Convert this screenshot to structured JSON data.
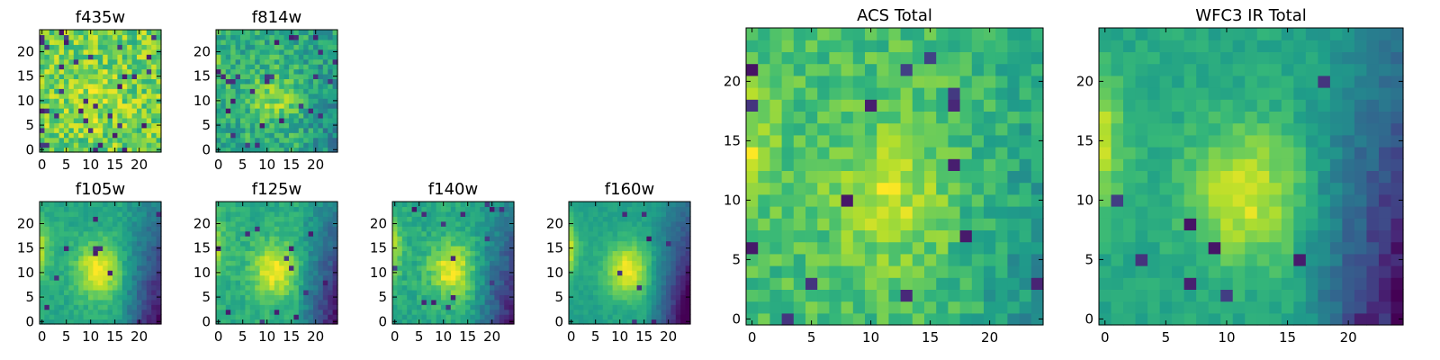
{
  "chart_data": [
    {
      "type": "heatmap",
      "title": "f435w",
      "xticks": [
        "0",
        "5",
        "10",
        "15",
        "20"
      ],
      "yticks": [
        "0",
        "5",
        "10",
        "15",
        "20"
      ],
      "xlim": [
        -0.5,
        24.5
      ],
      "ylim": [
        -0.5,
        24.5
      ],
      "grid": false,
      "colormap": "viridis"
    },
    {
      "type": "heatmap",
      "title": "f814w",
      "xticks": [
        "0",
        "5",
        "10",
        "15",
        "20"
      ],
      "yticks": [
        "0",
        "5",
        "10",
        "15",
        "20"
      ],
      "xlim": [
        -0.5,
        24.5
      ],
      "ylim": [
        -0.5,
        24.5
      ],
      "grid": false,
      "colormap": "viridis"
    },
    {
      "type": "heatmap",
      "title": "f105w",
      "xticks": [
        "0",
        "5",
        "10",
        "15",
        "20"
      ],
      "yticks": [
        "0",
        "5",
        "10",
        "15",
        "20"
      ],
      "xlim": [
        -0.5,
        24.5
      ],
      "ylim": [
        -0.5,
        24.5
      ],
      "grid": false,
      "colormap": "viridis"
    },
    {
      "type": "heatmap",
      "title": "f125w",
      "xticks": [
        "0",
        "5",
        "10",
        "15",
        "20"
      ],
      "yticks": [
        "0",
        "5",
        "10",
        "15",
        "20"
      ],
      "xlim": [
        -0.5,
        24.5
      ],
      "ylim": [
        -0.5,
        24.5
      ],
      "grid": false,
      "colormap": "viridis"
    },
    {
      "type": "heatmap",
      "title": "f140w",
      "xticks": [
        "0",
        "5",
        "10",
        "15",
        "20"
      ],
      "yticks": [
        "0",
        "5",
        "10",
        "15",
        "20"
      ],
      "xlim": [
        -0.5,
        24.5
      ],
      "ylim": [
        -0.5,
        24.5
      ],
      "grid": false,
      "colormap": "viridis"
    },
    {
      "type": "heatmap",
      "title": "f160w",
      "xticks": [
        "0",
        "5",
        "10",
        "15",
        "20"
      ],
      "yticks": [
        "0",
        "5",
        "10",
        "15",
        "20"
      ],
      "xlim": [
        -0.5,
        24.5
      ],
      "ylim": [
        -0.5,
        24.5
      ],
      "grid": false,
      "colormap": "viridis"
    },
    {
      "type": "heatmap",
      "title": "ACS Total",
      "xticks": [
        "0",
        "5",
        "10",
        "15",
        "20"
      ],
      "yticks": [
        "0",
        "5",
        "10",
        "15",
        "20"
      ],
      "xlim": [
        -0.5,
        24.5
      ],
      "ylim": [
        -0.5,
        24.5
      ],
      "grid": false,
      "colormap": "viridis"
    },
    {
      "type": "heatmap",
      "title": "WFC3 IR Total",
      "xticks": [
        "0",
        "5",
        "10",
        "15",
        "20"
      ],
      "yticks": [
        "0",
        "5",
        "10",
        "15",
        "20"
      ],
      "xlim": [
        -0.5,
        24.5
      ],
      "ylim": [
        -0.5,
        24.5
      ],
      "grid": false,
      "colormap": "viridis"
    }
  ]
}
